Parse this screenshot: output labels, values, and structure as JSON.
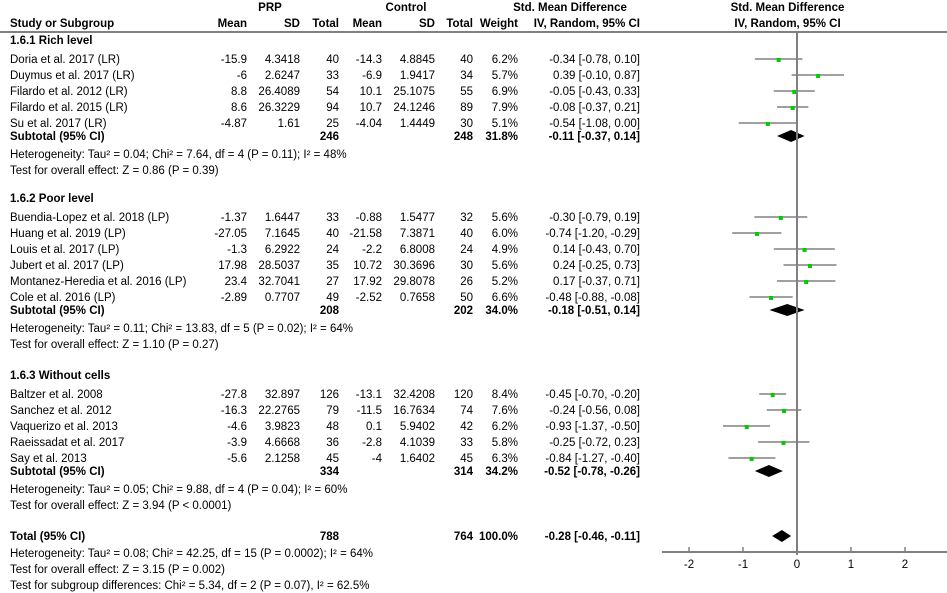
{
  "header": {
    "study_col": "Study or Subgroup",
    "prp_group": "PRP",
    "control_group": "Control",
    "mean": "Mean",
    "sd": "SD",
    "total": "Total",
    "weight": "Weight",
    "smd_title": "Std. Mean Difference",
    "smd_method": "IV, Random, 95% CI",
    "plot_title": "Std. Mean Difference",
    "plot_method": "IV, Random, 95% CI"
  },
  "chart_data": {
    "type": "forest",
    "xlim": [
      -2.5,
      2.7
    ],
    "xticks": [
      "-2",
      "-1",
      "0",
      "1",
      "2"
    ],
    "xtick_values": [
      -2,
      -1,
      0,
      1,
      2
    ],
    "colors": {
      "square": "#00cc00",
      "diamond": "#000000",
      "line": "#808080"
    },
    "subgroups": [
      {
        "label": "1.6.1 Rich level",
        "studies": [
          {
            "name": "Doria et al. 2017 (LR)",
            "prp_mean": "-15.9",
            "prp_sd": "4.3418",
            "prp_n": "40",
            "ctl_mean": "-14.3",
            "ctl_sd": "4.8845",
            "ctl_n": "40",
            "weight": "6.2%",
            "ci_text": "-0.34 [-0.78, 0.10]",
            "est": -0.34,
            "lo": -0.78,
            "hi": 0.1
          },
          {
            "name": "Duymus et al. 2017 (LR)",
            "prp_mean": "-6",
            "prp_sd": "2.6247",
            "prp_n": "33",
            "ctl_mean": "-6.9",
            "ctl_sd": "1.9417",
            "ctl_n": "34",
            "weight": "5.7%",
            "ci_text": "0.39 [-0.10, 0.87]",
            "est": 0.39,
            "lo": -0.1,
            "hi": 0.87
          },
          {
            "name": "Filardo et al. 2012 (LR)",
            "prp_mean": "8.8",
            "prp_sd": "26.4089",
            "prp_n": "54",
            "ctl_mean": "10.1",
            "ctl_sd": "25.1075",
            "ctl_n": "55",
            "weight": "6.9%",
            "ci_text": "-0.05 [-0.43, 0.33]",
            "est": -0.05,
            "lo": -0.43,
            "hi": 0.33
          },
          {
            "name": "Filardo et al. 2015 (LR)",
            "prp_mean": "8.6",
            "prp_sd": "26.3229",
            "prp_n": "94",
            "ctl_mean": "10.7",
            "ctl_sd": "24.1246",
            "ctl_n": "89",
            "weight": "7.9%",
            "ci_text": "-0.08 [-0.37, 0.21]",
            "est": -0.08,
            "lo": -0.37,
            "hi": 0.21
          },
          {
            "name": "Su et al. 2017 (LR)",
            "prp_mean": "-4.87",
            "prp_sd": "1.61",
            "prp_n": "25",
            "ctl_mean": "-4.04",
            "ctl_sd": "1.4449",
            "ctl_n": "30",
            "weight": "5.1%",
            "ci_text": "-0.54 [-1.08, 0.00]",
            "est": -0.54,
            "lo": -1.08,
            "hi": 0.0
          }
        ],
        "subtotal": {
          "label": "Subtotal (95% CI)",
          "prp_n": "246",
          "ctl_n": "248",
          "weight": "31.8%",
          "ci_text": "-0.11 [-0.37, 0.14]",
          "est": -0.11,
          "lo": -0.37,
          "hi": 0.14
        },
        "heterogeneity": "Heterogeneity: Tau² = 0.04; Chi² = 7.64, df = 4 (P = 0.11); I² = 48%",
        "overall": "Test for overall effect: Z = 0.86 (P = 0.39)"
      },
      {
        "label": "1.6.2 Poor level",
        "studies": [
          {
            "name": "Buendia-Lopez et al. 2018 (LP)",
            "prp_mean": "-1.37",
            "prp_sd": "1.6447",
            "prp_n": "33",
            "ctl_mean": "-0.88",
            "ctl_sd": "1.5477",
            "ctl_n": "32",
            "weight": "5.6%",
            "ci_text": "-0.30 [-0.79, 0.19]",
            "est": -0.3,
            "lo": -0.79,
            "hi": 0.19
          },
          {
            "name": "Huang et al. 2019 (LP)",
            "prp_mean": "-27.05",
            "prp_sd": "7.1645",
            "prp_n": "40",
            "ctl_mean": "-21.58",
            "ctl_sd": "7.3871",
            "ctl_n": "40",
            "weight": "6.0%",
            "ci_text": "-0.74 [-1.20, -0.29]",
            "est": -0.74,
            "lo": -1.2,
            "hi": -0.29
          },
          {
            "name": "Louis et al. 2017 (LP)",
            "prp_mean": "-1.3",
            "prp_sd": "6.2922",
            "prp_n": "24",
            "ctl_mean": "-2.2",
            "ctl_sd": "6.8008",
            "ctl_n": "24",
            "weight": "4.9%",
            "ci_text": "0.14 [-0.43, 0.70]",
            "est": 0.14,
            "lo": -0.43,
            "hi": 0.7
          },
          {
            "name": "Jubert et al. 2017 (LP)",
            "prp_mean": "17.98",
            "prp_sd": "28.5037",
            "prp_n": "35",
            "ctl_mean": "10.72",
            "ctl_sd": "30.3696",
            "ctl_n": "30",
            "weight": "5.6%",
            "ci_text": "0.24 [-0.25, 0.73]",
            "est": 0.24,
            "lo": -0.25,
            "hi": 0.73
          },
          {
            "name": "Montanez-Heredia et al. 2016 (LP)",
            "prp_mean": "23.4",
            "prp_sd": "32.7041",
            "prp_n": "27",
            "ctl_mean": "17.92",
            "ctl_sd": "29.8078",
            "ctl_n": "26",
            "weight": "5.2%",
            "ci_text": "0.17 [-0.37, 0.71]",
            "est": 0.17,
            "lo": -0.37,
            "hi": 0.71
          },
          {
            "name": "Cole et al. 2016 (LP)",
            "prp_mean": "-2.89",
            "prp_sd": "0.7707",
            "prp_n": "49",
            "ctl_mean": "-2.52",
            "ctl_sd": "0.7658",
            "ctl_n": "50",
            "weight": "6.6%",
            "ci_text": "-0.48 [-0.88, -0.08]",
            "est": -0.48,
            "lo": -0.88,
            "hi": -0.08
          }
        ],
        "subtotal": {
          "label": "Subtotal (95% CI)",
          "prp_n": "208",
          "ctl_n": "202",
          "weight": "34.0%",
          "ci_text": "-0.18 [-0.51, 0.14]",
          "est": -0.18,
          "lo": -0.51,
          "hi": 0.14
        },
        "heterogeneity": "Heterogeneity: Tau² = 0.11; Chi² = 13.83, df = 5 (P = 0.02); I² = 64%",
        "overall": "Test for overall effect: Z = 1.10 (P = 0.27)"
      },
      {
        "label": "1.6.3 Without cells",
        "studies": [
          {
            "name": "Baltzer et al. 2008",
            "prp_mean": "-27.8",
            "prp_sd": "32.897",
            "prp_n": "126",
            "ctl_mean": "-13.1",
            "ctl_sd": "32.4208",
            "ctl_n": "120",
            "weight": "8.4%",
            "ci_text": "-0.45 [-0.70, -0.20]",
            "est": -0.45,
            "lo": -0.7,
            "hi": -0.2
          },
          {
            "name": "Sanchez et al. 2012",
            "prp_mean": "-16.3",
            "prp_sd": "22.2765",
            "prp_n": "79",
            "ctl_mean": "-11.5",
            "ctl_sd": "16.7634",
            "ctl_n": "74",
            "weight": "7.6%",
            "ci_text": "-0.24 [-0.56, 0.08]",
            "est": -0.24,
            "lo": -0.56,
            "hi": 0.08
          },
          {
            "name": "Vaquerizo et al. 2013",
            "prp_mean": "-4.6",
            "prp_sd": "3.9823",
            "prp_n": "48",
            "ctl_mean": "0.1",
            "ctl_sd": "5.9402",
            "ctl_n": "42",
            "weight": "6.2%",
            "ci_text": "-0.93 [-1.37, -0.50]",
            "est": -0.93,
            "lo": -1.37,
            "hi": -0.5
          },
          {
            "name": "Raeissadat et al. 2017",
            "prp_mean": "-3.9",
            "prp_sd": "4.6668",
            "prp_n": "36",
            "ctl_mean": "-2.8",
            "ctl_sd": "4.1039",
            "ctl_n": "33",
            "weight": "5.8%",
            "ci_text": "-0.25 [-0.72, 0.23]",
            "est": -0.25,
            "lo": -0.72,
            "hi": 0.23
          },
          {
            "name": "Say et al. 2013",
            "prp_mean": "-5.6",
            "prp_sd": "2.1258",
            "prp_n": "45",
            "ctl_mean": "-4",
            "ctl_sd": "1.6402",
            "ctl_n": "45",
            "weight": "6.3%",
            "ci_text": "-0.84 [-1.27, -0.40]",
            "est": -0.84,
            "lo": -1.27,
            "hi": -0.4
          }
        ],
        "subtotal": {
          "label": "Subtotal (95% CI)",
          "prp_n": "334",
          "ctl_n": "314",
          "weight": "34.2%",
          "ci_text": "-0.52 [-0.78, -0.26]",
          "est": -0.52,
          "lo": -0.78,
          "hi": -0.26
        },
        "heterogeneity": "Heterogeneity: Tau² = 0.05; Chi² = 9.88, df = 4 (P = 0.04); I² = 60%",
        "overall": "Test for overall effect: Z = 3.94 (P < 0.0001)"
      }
    ],
    "total": {
      "label": "Total (95% CI)",
      "prp_n": "788",
      "ctl_n": "764",
      "weight": "100.0%",
      "ci_text": "-0.28 [-0.46, -0.11]",
      "est": -0.28,
      "lo": -0.46,
      "hi": -0.11
    },
    "total_heterogeneity": "Heterogeneity: Tau² = 0.08; Chi² = 42.25, df = 15 (P = 0.0002); I² = 64%",
    "total_overall": "Test for overall effect: Z = 3.15 (P = 0.002)",
    "subgroup_diff": "Test for subgroup differences: Chi² = 5.34, df = 2 (P = 0.07), I² = 62.5%"
  }
}
